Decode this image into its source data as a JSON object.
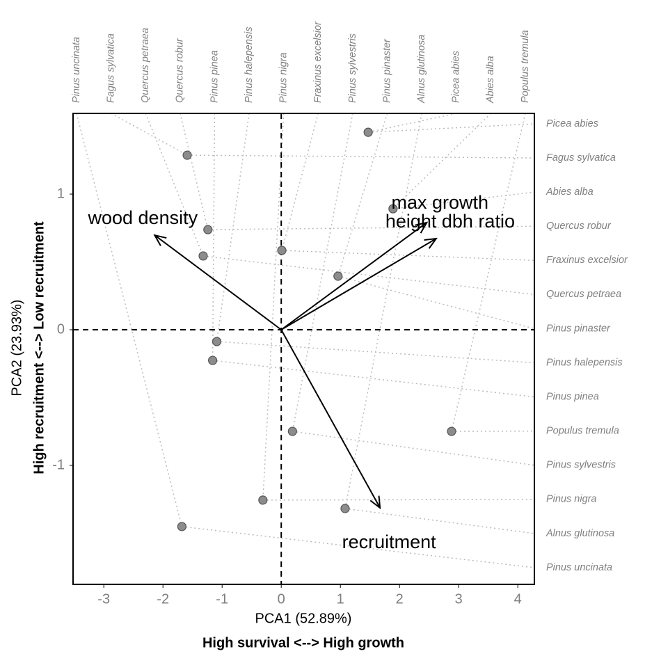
{
  "chart_data": {
    "type": "scatter",
    "x_label": "PCA1 (52.89%)",
    "x_sublabel": "High survival <--> High growth",
    "y_label": "PCA2 (23.93%)",
    "y_sublabel": "High recruitment <--> Low recruitment",
    "xlim": [
      -3.52,
      4.28
    ],
    "ylim": [
      -1.877,
      1.595
    ],
    "xticks": [
      -3,
      -2,
      -1,
      0,
      1,
      2,
      3,
      4
    ],
    "yticks": [
      -1,
      0,
      1
    ],
    "color": "#8c8c8c",
    "top_labels": [
      "Pinus uncinata",
      "Fagus sylvatica",
      "Quercus petraea",
      "Quercus robur",
      "Pinus pinea",
      "Pinus halepensis",
      "Pinus nigra",
      "Fraxinus excelsior",
      "Pinus sylvestris",
      "Pinus pinaster",
      "Alnus glutinosa",
      "Picea abies",
      "Abies alba",
      "Populus tremula"
    ],
    "right_labels": [
      "Picea abies",
      "Fagus sylvatica",
      "Abies alba",
      "Quercus robur",
      "Fraxinus excelsior",
      "Quercus petraea",
      "Pinus pinaster",
      "Pinus halepensis",
      "Pinus pinea",
      "Populus tremula",
      "Pinus sylvestris",
      "Pinus nigra",
      "Alnus glutinosa",
      "Pinus uncinata"
    ],
    "x": [
      -1.68,
      -1.59,
      -1.32,
      -1.24,
      -1.16,
      -1.09,
      -0.31,
      0.01,
      0.19,
      0.96,
      1.08,
      1.47,
      1.89,
      2.88
    ],
    "y": [
      -1.451,
      1.287,
      0.544,
      0.738,
      -0.226,
      -0.087,
      -1.256,
      0.585,
      -0.749,
      0.395,
      -1.318,
      1.456,
      0.892,
      -0.749
    ],
    "loadings": [
      {
        "name": "wood density",
        "x": -2.14,
        "y": 0.697
      },
      {
        "name": "max growth",
        "x": 2.46,
        "y": 0.79
      },
      {
        "name": "height dbh ratio",
        "x": 2.62,
        "y": 0.672
      },
      {
        "name": "recruitment",
        "x": 1.67,
        "y": -1.313
      }
    ]
  }
}
